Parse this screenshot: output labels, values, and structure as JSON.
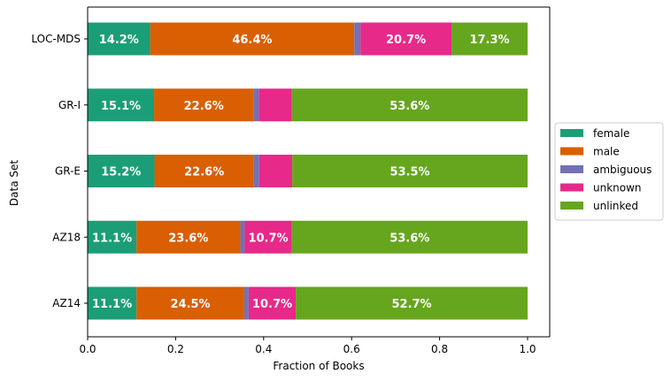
{
  "chart_data": {
    "type": "bar",
    "orientation": "horizontal",
    "stacked": true,
    "categories": [
      "AZ14",
      "AZ18",
      "GR-E",
      "GR-I",
      "LOC-MDS"
    ],
    "xlabel": "Fraction of Books",
    "ylabel": "Data Set",
    "xlim": [
      0,
      1.05
    ],
    "xticks": [
      "0.0",
      "0.2",
      "0.4",
      "0.6",
      "0.8",
      "1.0"
    ],
    "grid": false,
    "legend_position": "center-right-outside",
    "series": [
      {
        "name": "female",
        "color": "#1b9e77",
        "values": [
          0.111,
          0.111,
          0.152,
          0.151,
          0.142
        ],
        "labels": [
          "11.1%",
          "11.1%",
          "15.2%",
          "15.1%",
          "14.2%"
        ]
      },
      {
        "name": "male",
        "color": "#d95f02",
        "values": [
          0.245,
          0.236,
          0.226,
          0.226,
          0.464
        ],
        "labels": [
          "24.5%",
          "23.6%",
          "22.6%",
          "22.6%",
          "46.4%"
        ]
      },
      {
        "name": "ambiguous",
        "color": "#7570b3",
        "values": [
          0.01,
          0.01,
          0.012,
          0.012,
          0.014
        ],
        "labels": [
          "",
          "",
          "",
          "",
          ""
        ]
      },
      {
        "name": "unknown",
        "color": "#e7298a",
        "values": [
          0.107,
          0.107,
          0.075,
          0.075,
          0.207
        ],
        "labels": [
          "10.7%",
          "10.7%",
          "",
          "",
          "20.7%"
        ]
      },
      {
        "name": "unlinked",
        "color": "#66a61e",
        "values": [
          0.527,
          0.536,
          0.535,
          0.536,
          0.173
        ],
        "labels": [
          "52.7%",
          "53.6%",
          "53.5%",
          "53.6%",
          "17.3%"
        ]
      }
    ]
  }
}
